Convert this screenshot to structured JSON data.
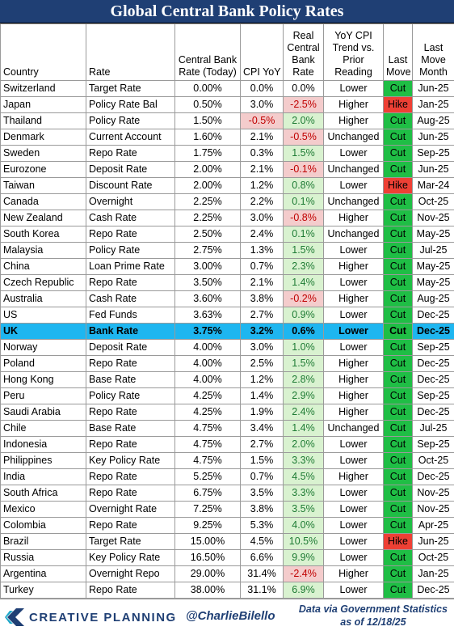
{
  "title": "Global Central Bank Policy Rates",
  "headers": [
    "Country",
    "Rate",
    "Central Bank Rate (Today)",
    "CPI YoY",
    "Real Central Bank Rate",
    "YoY CPI Trend vs. Prior Reading",
    "Last Move",
    "Last Move Month"
  ],
  "colors": {
    "title_bg": "#1f3f74",
    "cut": "#1fbe45",
    "hike": "#ee4035",
    "highlight": "#1eb6f0",
    "neg_bg": "#f4cccc",
    "pos_bg": "#d9f2d0"
  },
  "chart_data": {
    "type": "table",
    "highlight_row": "UK",
    "rows": [
      {
        "country": "Switzerland",
        "rate": "Target Rate",
        "cb_rate": "0.00%",
        "cpi": "0.0%",
        "real": "0.0%",
        "trend": "Lower",
        "move": "Cut",
        "month": "Jun-25"
      },
      {
        "country": "Japan",
        "rate": "Policy Rate Bal",
        "cb_rate": "0.50%",
        "cpi": "3.0%",
        "real": "-2.5%",
        "trend": "Higher",
        "move": "Hike",
        "month": "Jan-25"
      },
      {
        "country": "Thailand",
        "rate": "Policy Rate",
        "cb_rate": "1.50%",
        "cpi": "-0.5%",
        "real": "2.0%",
        "trend": "Higher",
        "move": "Cut",
        "month": "Aug-25"
      },
      {
        "country": "Denmark",
        "rate": "Current Account",
        "cb_rate": "1.60%",
        "cpi": "2.1%",
        "real": "-0.5%",
        "trend": "Unchanged",
        "move": "Cut",
        "month": "Jun-25"
      },
      {
        "country": "Sweden",
        "rate": "Repo Rate",
        "cb_rate": "1.75%",
        "cpi": "0.3%",
        "real": "1.5%",
        "trend": "Lower",
        "move": "Cut",
        "month": "Sep-25"
      },
      {
        "country": "Eurozone",
        "rate": "Deposit Rate",
        "cb_rate": "2.00%",
        "cpi": "2.1%",
        "real": "-0.1%",
        "trend": "Unchanged",
        "move": "Cut",
        "month": "Jun-25"
      },
      {
        "country": "Taiwan",
        "rate": "Discount Rate",
        "cb_rate": "2.00%",
        "cpi": "1.2%",
        "real": "0.8%",
        "trend": "Lower",
        "move": "Hike",
        "month": "Mar-24"
      },
      {
        "country": "Canada",
        "rate": "Overnight",
        "cb_rate": "2.25%",
        "cpi": "2.2%",
        "real": "0.1%",
        "trend": "Unchanged",
        "move": "Cut",
        "month": "Oct-25"
      },
      {
        "country": "New Zealand",
        "rate": "Cash Rate",
        "cb_rate": "2.25%",
        "cpi": "3.0%",
        "real": "-0.8%",
        "trend": "Higher",
        "move": "Cut",
        "month": "Nov-25"
      },
      {
        "country": "South Korea",
        "rate": "Repo Rate",
        "cb_rate": "2.50%",
        "cpi": "2.4%",
        "real": "0.1%",
        "trend": "Unchanged",
        "move": "Cut",
        "month": "May-25"
      },
      {
        "country": "Malaysia",
        "rate": "Policy Rate",
        "cb_rate": "2.75%",
        "cpi": "1.3%",
        "real": "1.5%",
        "trend": "Lower",
        "move": "Cut",
        "month": "Jul-25"
      },
      {
        "country": "China",
        "rate": "Loan Prime Rate",
        "cb_rate": "3.00%",
        "cpi": "0.7%",
        "real": "2.3%",
        "trend": "Higher",
        "move": "Cut",
        "month": "May-25"
      },
      {
        "country": "Czech Republic",
        "rate": "Repo Rate",
        "cb_rate": "3.50%",
        "cpi": "2.1%",
        "real": "1.4%",
        "trend": "Lower",
        "move": "Cut",
        "month": "May-25"
      },
      {
        "country": "Australia",
        "rate": "Cash Rate",
        "cb_rate": "3.60%",
        "cpi": "3.8%",
        "real": "-0.2%",
        "trend": "Higher",
        "move": "Cut",
        "month": "Aug-25"
      },
      {
        "country": "US",
        "rate": "Fed Funds",
        "cb_rate": "3.63%",
        "cpi": "2.7%",
        "real": "0.9%",
        "trend": "Lower",
        "move": "Cut",
        "month": "Dec-25"
      },
      {
        "country": "UK",
        "rate": "Bank Rate",
        "cb_rate": "3.75%",
        "cpi": "3.2%",
        "real": "0.6%",
        "trend": "Lower",
        "move": "Cut",
        "month": "Dec-25"
      },
      {
        "country": "Norway",
        "rate": "Deposit Rate",
        "cb_rate": "4.00%",
        "cpi": "3.0%",
        "real": "1.0%",
        "trend": "Lower",
        "move": "Cut",
        "month": "Sep-25"
      },
      {
        "country": "Poland",
        "rate": "Repo Rate",
        "cb_rate": "4.00%",
        "cpi": "2.5%",
        "real": "1.5%",
        "trend": "Higher",
        "move": "Cut",
        "month": "Dec-25"
      },
      {
        "country": "Hong Kong",
        "rate": "Base Rate",
        "cb_rate": "4.00%",
        "cpi": "1.2%",
        "real": "2.8%",
        "trend": "Higher",
        "move": "Cut",
        "month": "Dec-25"
      },
      {
        "country": "Peru",
        "rate": "Policy Rate",
        "cb_rate": "4.25%",
        "cpi": "1.4%",
        "real": "2.9%",
        "trend": "Higher",
        "move": "Cut",
        "month": "Sep-25"
      },
      {
        "country": "Saudi Arabia",
        "rate": "Repo Rate",
        "cb_rate": "4.25%",
        "cpi": "1.9%",
        "real": "2.4%",
        "trend": "Higher",
        "move": "Cut",
        "month": "Dec-25"
      },
      {
        "country": "Chile",
        "rate": "Base Rate",
        "cb_rate": "4.75%",
        "cpi": "3.4%",
        "real": "1.4%",
        "trend": "Unchanged",
        "move": "Cut",
        "month": "Jul-25"
      },
      {
        "country": "Indonesia",
        "rate": "Repo Rate",
        "cb_rate": "4.75%",
        "cpi": "2.7%",
        "real": "2.0%",
        "trend": "Lower",
        "move": "Cut",
        "month": "Sep-25"
      },
      {
        "country": "Philippines",
        "rate": "Key Policy Rate",
        "cb_rate": "4.75%",
        "cpi": "1.5%",
        "real": "3.3%",
        "trend": "Lower",
        "move": "Cut",
        "month": "Oct-25"
      },
      {
        "country": "India",
        "rate": "Repo Rate",
        "cb_rate": "5.25%",
        "cpi": "0.7%",
        "real": "4.5%",
        "trend": "Higher",
        "move": "Cut",
        "month": "Dec-25"
      },
      {
        "country": "South Africa",
        "rate": "Repo Rate",
        "cb_rate": "6.75%",
        "cpi": "3.5%",
        "real": "3.3%",
        "trend": "Lower",
        "move": "Cut",
        "month": "Nov-25"
      },
      {
        "country": "Mexico",
        "rate": "Overnight Rate",
        "cb_rate": "7.25%",
        "cpi": "3.8%",
        "real": "3.5%",
        "trend": "Lower",
        "move": "Cut",
        "month": "Nov-25"
      },
      {
        "country": "Colombia",
        "rate": "Repo Rate",
        "cb_rate": "9.25%",
        "cpi": "5.3%",
        "real": "4.0%",
        "trend": "Lower",
        "move": "Cut",
        "month": "Apr-25"
      },
      {
        "country": "Brazil",
        "rate": "Target Rate",
        "cb_rate": "15.00%",
        "cpi": "4.5%",
        "real": "10.5%",
        "trend": "Lower",
        "move": "Hike",
        "month": "Jun-25"
      },
      {
        "country": "Russia",
        "rate": "Key Policy Rate",
        "cb_rate": "16.50%",
        "cpi": "6.6%",
        "real": "9.9%",
        "trend": "Lower",
        "move": "Cut",
        "month": "Oct-25"
      },
      {
        "country": "Argentina",
        "rate": "Overnight Repo",
        "cb_rate": "29.00%",
        "cpi": "31.4%",
        "real": "-2.4%",
        "trend": "Higher",
        "move": "Cut",
        "month": "Jan-25"
      },
      {
        "country": "Turkey",
        "rate": "Repo Rate",
        "cb_rate": "38.00%",
        "cpi": "31.1%",
        "real": "6.9%",
        "trend": "Lower",
        "move": "Cut",
        "month": "Dec-25"
      }
    ]
  },
  "footer": {
    "logo_text": "CREATIVE PLANNING",
    "logo_icon": "creative-planning-chevron-icon",
    "handle": "@CharlieBilello",
    "source_line1": "Data via Government Statistics",
    "source_line2": "as of 12/18/25"
  }
}
